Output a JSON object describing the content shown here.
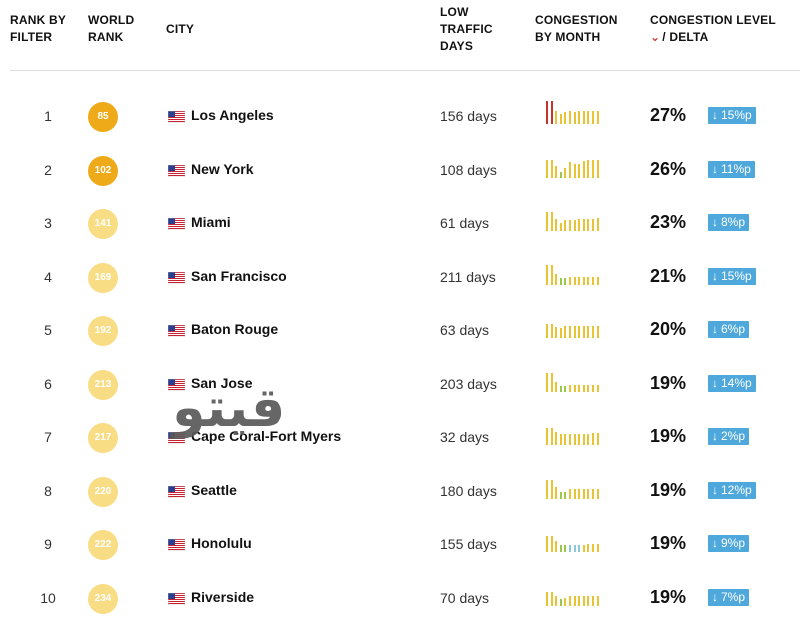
{
  "header": {
    "rank_by_filter": [
      "RANK BY",
      "FILTER"
    ],
    "world_rank": [
      "WORLD",
      "RANK"
    ],
    "city": "CITY",
    "low_traffic_days": [
      "LOW",
      "TRAFFIC",
      "DAYS"
    ],
    "congestion_by_month": [
      "CONGESTION",
      "BY MONTH"
    ],
    "congestion_level": [
      "CONGESTION LEVEL",
      "/ DELTA"
    ],
    "sort_icon": "chevron-down-icon"
  },
  "colors": {
    "badge_dark": "#efaa1a",
    "badge_mid": "#f4c44a",
    "badge_light": "#f8dd85",
    "delta_bg": "#4fa8dc",
    "bar_red": "#c7312c",
    "bar_yellow": "#e8c434",
    "bar_green": "#9ac84a",
    "bar_blue": "#8cc9d8"
  },
  "rows": [
    {
      "rank": "1",
      "world_rank": "85",
      "tone": "dark",
      "city": "Los Angeles",
      "low_days": "156 days",
      "level": "27%",
      "delta": "15%p",
      "months": [
        {
          "h": 0.95,
          "c": "red"
        },
        {
          "h": 0.95,
          "c": "red"
        },
        {
          "h": 0.55,
          "c": "yellow"
        },
        {
          "h": 0.4,
          "c": "yellow"
        },
        {
          "h": 0.5,
          "c": "yellow"
        },
        {
          "h": 0.55,
          "c": "yellow"
        },
        {
          "h": 0.5,
          "c": "yellow"
        },
        {
          "h": 0.55,
          "c": "yellow"
        },
        {
          "h": 0.55,
          "c": "yellow"
        },
        {
          "h": 0.55,
          "c": "yellow"
        },
        {
          "h": 0.55,
          "c": "yellow"
        },
        {
          "h": 0.55,
          "c": "yellow"
        }
      ]
    },
    {
      "rank": "2",
      "world_rank": "102",
      "tone": "dark",
      "city": "New York",
      "low_days": "108 days",
      "level": "26%",
      "delta": "11%p",
      "months": [
        {
          "h": 0.75,
          "c": "yellow"
        },
        {
          "h": 0.75,
          "c": "yellow"
        },
        {
          "h": 0.5,
          "c": "yellow"
        },
        {
          "h": 0.25,
          "c": "green"
        },
        {
          "h": 0.4,
          "c": "yellow"
        },
        {
          "h": 0.65,
          "c": "yellow"
        },
        {
          "h": 0.6,
          "c": "yellow"
        },
        {
          "h": 0.6,
          "c": "yellow"
        },
        {
          "h": 0.7,
          "c": "yellow"
        },
        {
          "h": 0.75,
          "c": "yellow"
        },
        {
          "h": 0.75,
          "c": "yellow"
        },
        {
          "h": 0.75,
          "c": "yellow"
        }
      ]
    },
    {
      "rank": "3",
      "world_rank": "141",
      "tone": "light",
      "city": "Miami",
      "low_days": "61 days",
      "level": "23%",
      "delta": "8%p",
      "months": [
        {
          "h": 0.8,
          "c": "yellow"
        },
        {
          "h": 0.8,
          "c": "yellow"
        },
        {
          "h": 0.5,
          "c": "yellow"
        },
        {
          "h": 0.35,
          "c": "yellow"
        },
        {
          "h": 0.45,
          "c": "yellow"
        },
        {
          "h": 0.45,
          "c": "yellow"
        },
        {
          "h": 0.45,
          "c": "yellow"
        },
        {
          "h": 0.5,
          "c": "yellow"
        },
        {
          "h": 0.5,
          "c": "yellow"
        },
        {
          "h": 0.5,
          "c": "yellow"
        },
        {
          "h": 0.5,
          "c": "yellow"
        },
        {
          "h": 0.55,
          "c": "yellow"
        }
      ]
    },
    {
      "rank": "4",
      "world_rank": "169",
      "tone": "light",
      "city": "San Francisco",
      "low_days": "211 days",
      "level": "21%",
      "delta": "15%p",
      "months": [
        {
          "h": 0.85,
          "c": "yellow"
        },
        {
          "h": 0.85,
          "c": "yellow"
        },
        {
          "h": 0.45,
          "c": "yellow"
        },
        {
          "h": 0.3,
          "c": "green"
        },
        {
          "h": 0.3,
          "c": "green"
        },
        {
          "h": 0.35,
          "c": "yellow"
        },
        {
          "h": 0.35,
          "c": "yellow"
        },
        {
          "h": 0.35,
          "c": "yellow"
        },
        {
          "h": 0.35,
          "c": "yellow"
        },
        {
          "h": 0.35,
          "c": "yellow"
        },
        {
          "h": 0.35,
          "c": "yellow"
        },
        {
          "h": 0.35,
          "c": "yellow"
        }
      ]
    },
    {
      "rank": "5",
      "world_rank": "192",
      "tone": "light",
      "city": "Baton Rouge",
      "low_days": "63 days",
      "level": "20%",
      "delta": "6%p",
      "months": [
        {
          "h": 0.6,
          "c": "yellow"
        },
        {
          "h": 0.6,
          "c": "yellow"
        },
        {
          "h": 0.45,
          "c": "yellow"
        },
        {
          "h": 0.4,
          "c": "yellow"
        },
        {
          "h": 0.5,
          "c": "yellow"
        },
        {
          "h": 0.5,
          "c": "yellow"
        },
        {
          "h": 0.5,
          "c": "yellow"
        },
        {
          "h": 0.5,
          "c": "yellow"
        },
        {
          "h": 0.5,
          "c": "yellow"
        },
        {
          "h": 0.5,
          "c": "yellow"
        },
        {
          "h": 0.5,
          "c": "yellow"
        },
        {
          "h": 0.5,
          "c": "yellow"
        }
      ]
    },
    {
      "rank": "6",
      "world_rank": "213",
      "tone": "light",
      "city": "San Jose",
      "low_days": "203 days",
      "level": "19%",
      "delta": "14%p",
      "months": [
        {
          "h": 0.8,
          "c": "yellow"
        },
        {
          "h": 0.8,
          "c": "yellow"
        },
        {
          "h": 0.4,
          "c": "yellow"
        },
        {
          "h": 0.25,
          "c": "green"
        },
        {
          "h": 0.25,
          "c": "green"
        },
        {
          "h": 0.3,
          "c": "yellow"
        },
        {
          "h": 0.3,
          "c": "yellow"
        },
        {
          "h": 0.3,
          "c": "yellow"
        },
        {
          "h": 0.3,
          "c": "yellow"
        },
        {
          "h": 0.3,
          "c": "yellow"
        },
        {
          "h": 0.3,
          "c": "yellow"
        },
        {
          "h": 0.3,
          "c": "yellow"
        }
      ]
    },
    {
      "rank": "7",
      "world_rank": "217",
      "tone": "light",
      "city": "Cape Coral-Fort Myers",
      "low_days": "32 days",
      "level": "19%",
      "delta": "2%p",
      "months": [
        {
          "h": 0.7,
          "c": "yellow"
        },
        {
          "h": 0.7,
          "c": "yellow"
        },
        {
          "h": 0.55,
          "c": "yellow"
        },
        {
          "h": 0.45,
          "c": "yellow"
        },
        {
          "h": 0.45,
          "c": "yellow"
        },
        {
          "h": 0.45,
          "c": "yellow"
        },
        {
          "h": 0.45,
          "c": "yellow"
        },
        {
          "h": 0.45,
          "c": "yellow"
        },
        {
          "h": 0.45,
          "c": "yellow"
        },
        {
          "h": 0.45,
          "c": "yellow"
        },
        {
          "h": 0.5,
          "c": "yellow"
        },
        {
          "h": 0.5,
          "c": "yellow"
        }
      ]
    },
    {
      "rank": "8",
      "world_rank": "220",
      "tone": "light",
      "city": "Seattle",
      "low_days": "180 days",
      "level": "19%",
      "delta": "12%p",
      "months": [
        {
          "h": 0.8,
          "c": "yellow"
        },
        {
          "h": 0.8,
          "c": "yellow"
        },
        {
          "h": 0.5,
          "c": "yellow"
        },
        {
          "h": 0.3,
          "c": "green"
        },
        {
          "h": 0.3,
          "c": "green"
        },
        {
          "h": 0.4,
          "c": "yellow"
        },
        {
          "h": 0.4,
          "c": "yellow"
        },
        {
          "h": 0.4,
          "c": "yellow"
        },
        {
          "h": 0.4,
          "c": "yellow"
        },
        {
          "h": 0.4,
          "c": "yellow"
        },
        {
          "h": 0.4,
          "c": "yellow"
        },
        {
          "h": 0.4,
          "c": "yellow"
        }
      ]
    },
    {
      "rank": "9",
      "world_rank": "222",
      "tone": "light",
      "city": "Honolulu",
      "low_days": "155 days",
      "level": "19%",
      "delta": "9%p",
      "months": [
        {
          "h": 0.65,
          "c": "yellow"
        },
        {
          "h": 0.65,
          "c": "yellow"
        },
        {
          "h": 0.45,
          "c": "yellow"
        },
        {
          "h": 0.3,
          "c": "green"
        },
        {
          "h": 0.3,
          "c": "green"
        },
        {
          "h": 0.3,
          "c": "blue"
        },
        {
          "h": 0.3,
          "c": "blue"
        },
        {
          "h": 0.3,
          "c": "blue"
        },
        {
          "h": 0.3,
          "c": "yellow"
        },
        {
          "h": 0.35,
          "c": "yellow"
        },
        {
          "h": 0.35,
          "c": "yellow"
        },
        {
          "h": 0.35,
          "c": "yellow"
        }
      ]
    },
    {
      "rank": "10",
      "world_rank": "234",
      "tone": "light",
      "city": "Riverside",
      "low_days": "70 days",
      "level": "19%",
      "delta": "7%p",
      "months": [
        {
          "h": 0.6,
          "c": "yellow"
        },
        {
          "h": 0.6,
          "c": "yellow"
        },
        {
          "h": 0.4,
          "c": "yellow"
        },
        {
          "h": 0.3,
          "c": "green"
        },
        {
          "h": 0.35,
          "c": "yellow"
        },
        {
          "h": 0.4,
          "c": "yellow"
        },
        {
          "h": 0.4,
          "c": "yellow"
        },
        {
          "h": 0.4,
          "c": "yellow"
        },
        {
          "h": 0.4,
          "c": "yellow"
        },
        {
          "h": 0.4,
          "c": "yellow"
        },
        {
          "h": 0.4,
          "c": "yellow"
        },
        {
          "h": 0.4,
          "c": "yellow"
        }
      ]
    }
  ],
  "watermark": "قيتو"
}
